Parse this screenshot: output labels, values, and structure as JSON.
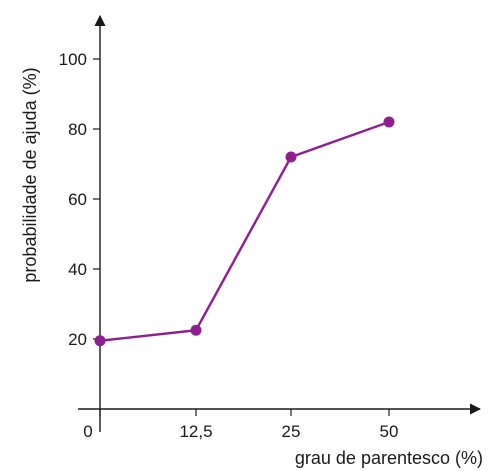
{
  "chart_data": {
    "type": "line",
    "xlabel": "grau de parentesco (%)",
    "ylabel": "probabilidade de ajuda (%)",
    "categories": [
      "0",
      "12,5",
      "25",
      "50"
    ],
    "y_ticks": [
      "20",
      "40",
      "60",
      "80",
      "100"
    ],
    "ylim": [
      0,
      115
    ],
    "series": [
      {
        "values": [
          19.5,
          22.5,
          72,
          82
        ]
      }
    ],
    "grid": false,
    "colors": {
      "line": "#8e1f8e",
      "marker": "#8e1f8e",
      "axis": "#1a1a1a"
    }
  }
}
